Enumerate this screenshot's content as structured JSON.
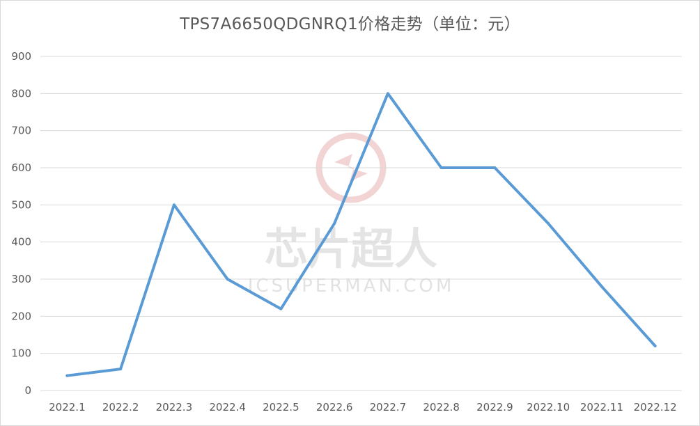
{
  "colors": {
    "series": "#5b9bd5",
    "grid": "#d9d9d9",
    "text": "#595959",
    "watermark": "#e8b0b0"
  },
  "watermark": {
    "title": "芯片超人",
    "subtitle": "ICSUPERMAN.COM"
  },
  "chart_data": {
    "type": "line",
    "title": "TPS7A6650QDGNRQ1价格走势（单位：元）",
    "xlabel": "",
    "ylabel": "",
    "categories": [
      "2022.1",
      "2022.2",
      "2022.3",
      "2022.4",
      "2022.5",
      "2022.6",
      "2022.7",
      "2022.8",
      "2022.9",
      "2022.10",
      "2022.11",
      "2022.12"
    ],
    "series": [
      {
        "values": [
          40,
          58,
          500,
          300,
          220,
          450,
          800,
          600,
          600,
          450,
          280,
          120
        ]
      }
    ],
    "ylim": [
      0,
      900
    ],
    "yticks": [
      0,
      100,
      200,
      300,
      400,
      500,
      600,
      700,
      800,
      900
    ],
    "grid": true,
    "legend": "none"
  }
}
